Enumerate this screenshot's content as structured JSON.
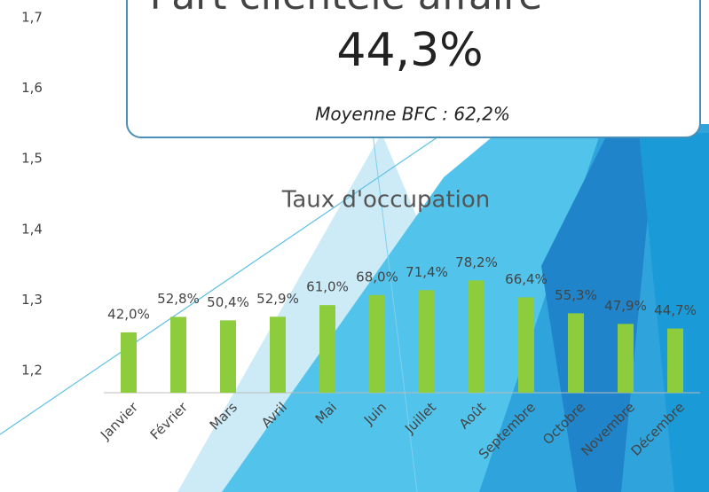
{
  "callout": {
    "title": "Part clientèle affaire",
    "value": "44,3%",
    "subtitle": "Moyenne BFC : 62,2%"
  },
  "chart_data": [
    {
      "type": "axis",
      "ylim": [
        1.2,
        1.7
      ],
      "yticks": [
        {
          "value": 1.7,
          "label": "1,7"
        },
        {
          "value": 1.6,
          "label": "1,6"
        },
        {
          "value": 1.5,
          "label": "1,5"
        },
        {
          "value": 1.4,
          "label": "1,4"
        },
        {
          "value": 1.3,
          "label": "1,3"
        },
        {
          "value": 1.2,
          "label": "1,2"
        }
      ]
    },
    {
      "type": "bar",
      "title": "Taux d'occupation",
      "categories": [
        "Janvier",
        "Février",
        "Mars",
        "Avril",
        "Mai",
        "Juin",
        "Juillet",
        "Août",
        "Septembre",
        "Octobre",
        "Novembre",
        "Décembre"
      ],
      "values": [
        42.0,
        52.8,
        50.4,
        52.9,
        61.0,
        68.0,
        71.4,
        78.2,
        66.4,
        55.3,
        47.9,
        44.7
      ],
      "value_labels": [
        "42,0%",
        "52,8%",
        "50,4%",
        "52,9%",
        "61,0%",
        "68,0%",
        "71,4%",
        "78,2%",
        "66,4%",
        "55,3%",
        "47,9%",
        "44,7%"
      ],
      "color": "#8dcc3c",
      "ylim": [
        0,
        100
      ]
    }
  ]
}
